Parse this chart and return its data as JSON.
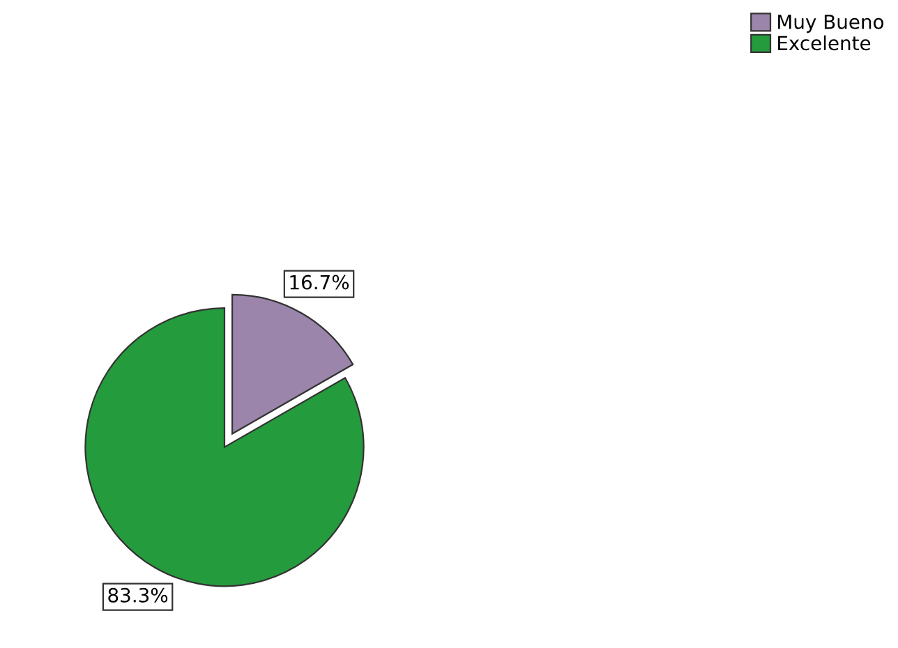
{
  "chart_data": {
    "type": "pie",
    "categories": [
      "Muy Bueno",
      "Excelente"
    ],
    "values": [
      16.7,
      83.3
    ],
    "colors": [
      "#9b85ab",
      "#249b3c"
    ],
    "value_labels": [
      "16.7%",
      "83.3%"
    ],
    "legend": "top right"
  }
}
